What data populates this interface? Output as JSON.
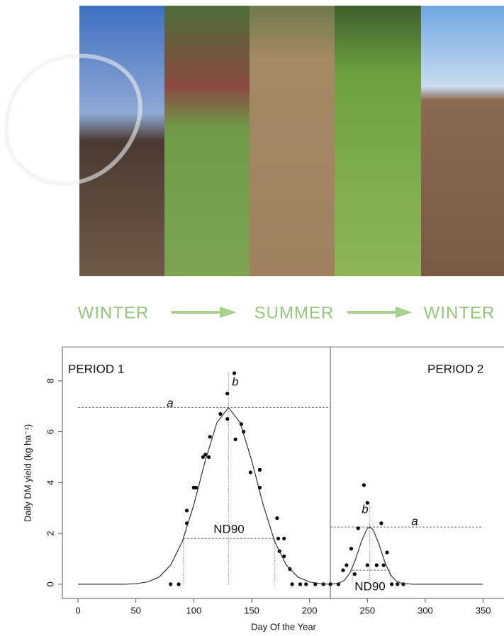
{
  "header": {
    "seasons": [
      "WINTER",
      "SUMMER",
      "WINTER"
    ]
  },
  "chart_data": {
    "type": "scatter",
    "x_label": "Day Of the Year",
    "y_label": "Daily DM yield (kg ha⁻¹)",
    "xlim": [
      -13.5,
      368
    ],
    "ylim": [
      -0.56,
      9.33
    ],
    "xticks": [
      0,
      50,
      100,
      150,
      200,
      250,
      300,
      350
    ],
    "yticks": [
      0,
      2,
      4,
      6,
      8
    ],
    "period_divider": 218,
    "periods": [
      "PERIOD 1",
      "PERIOD 2"
    ],
    "annotations": [
      "a",
      "b",
      "ND90",
      "a",
      "b",
      "ND90"
    ],
    "series": [
      {
        "type": "scatter",
        "color": "#000000",
        "x": [
          80,
          87,
          94,
          94,
          100,
          102,
          108,
          110,
          113,
          114,
          123,
          129,
          129,
          135,
          136,
          141,
          143,
          149,
          157,
          157,
          172,
          173,
          178,
          174,
          178,
          183,
          185,
          192,
          197,
          205,
          212,
          218,
          225,
          229,
          232,
          236,
          239,
          242,
          247,
          250,
          250,
          258,
          262,
          264,
          267,
          271,
          276,
          281
        ],
        "values": [
          0,
          0,
          2.9,
          2.4,
          3.8,
          3.8,
          5.0,
          5.1,
          5.0,
          5.8,
          6.7,
          6.5,
          7.5,
          8.3,
          5.7,
          6.3,
          6.0,
          4.4,
          4.5,
          3.8,
          2.6,
          1.8,
          1.8,
          1.3,
          1.1,
          0.6,
          0,
          0,
          0,
          0,
          0,
          0,
          0,
          0.55,
          0.75,
          1.4,
          0.4,
          2.2,
          3.9,
          3.2,
          0.75,
          0.75,
          2.4,
          0.75,
          1.25,
          0,
          0,
          0
        ]
      },
      {
        "type": "line",
        "color": "#333333",
        "x": [
          0,
          40,
          50,
          60,
          70,
          80,
          90,
          100,
          110,
          120,
          130,
          140,
          150,
          160,
          170,
          180,
          190,
          200,
          210,
          218
        ],
        "values": [
          0,
          0,
          0.02,
          0.09,
          0.28,
          0.75,
          1.67,
          3.12,
          4.87,
          6.36,
          6.95,
          6.36,
          4.87,
          3.12,
          1.67,
          0.75,
          0.28,
          0.09,
          0.02,
          0
        ]
      },
      {
        "type": "line",
        "color": "#333333",
        "x": [
          218,
          225,
          230,
          235,
          240,
          245,
          250,
          252,
          255,
          260,
          265,
          270,
          275,
          280,
          290,
          350
        ],
        "values": [
          0,
          0.04,
          0.15,
          0.45,
          1.01,
          1.71,
          2.2,
          2.25,
          2.14,
          1.58,
          0.88,
          0.37,
          0.12,
          0.03,
          0,
          0
        ]
      }
    ],
    "reference_lines": [
      {
        "style": "dashed",
        "x": [
          0,
          218
        ],
        "values": [
          6.95,
          6.95
        ]
      },
      {
        "style": "dotted",
        "x": [
          130,
          130
        ],
        "values": [
          0,
          8.3
        ]
      },
      {
        "style": "dashed",
        "x": [
          91,
          170
        ],
        "values": [
          1.8,
          1.8
        ]
      },
      {
        "style": "dotted",
        "x": [
          91,
          91
        ],
        "values": [
          0,
          1.8
        ]
      },
      {
        "style": "dotted",
        "x": [
          170,
          170
        ],
        "values": [
          0,
          1.8
        ]
      },
      {
        "style": "dashed",
        "x": [
          218,
          350
        ],
        "values": [
          2.25,
          2.25
        ]
      },
      {
        "style": "dotted",
        "x": [
          252,
          252
        ],
        "values": [
          0,
          3.2
        ]
      },
      {
        "style": "dashed",
        "x": [
          237,
          270
        ],
        "values": [
          0.55,
          0.55
        ]
      },
      {
        "style": "dotted",
        "x": [
          237,
          237
        ],
        "values": [
          0,
          0.55
        ]
      },
      {
        "style": "dotted",
        "x": [
          270,
          270
        ],
        "values": [
          0,
          0.55
        ]
      }
    ]
  }
}
